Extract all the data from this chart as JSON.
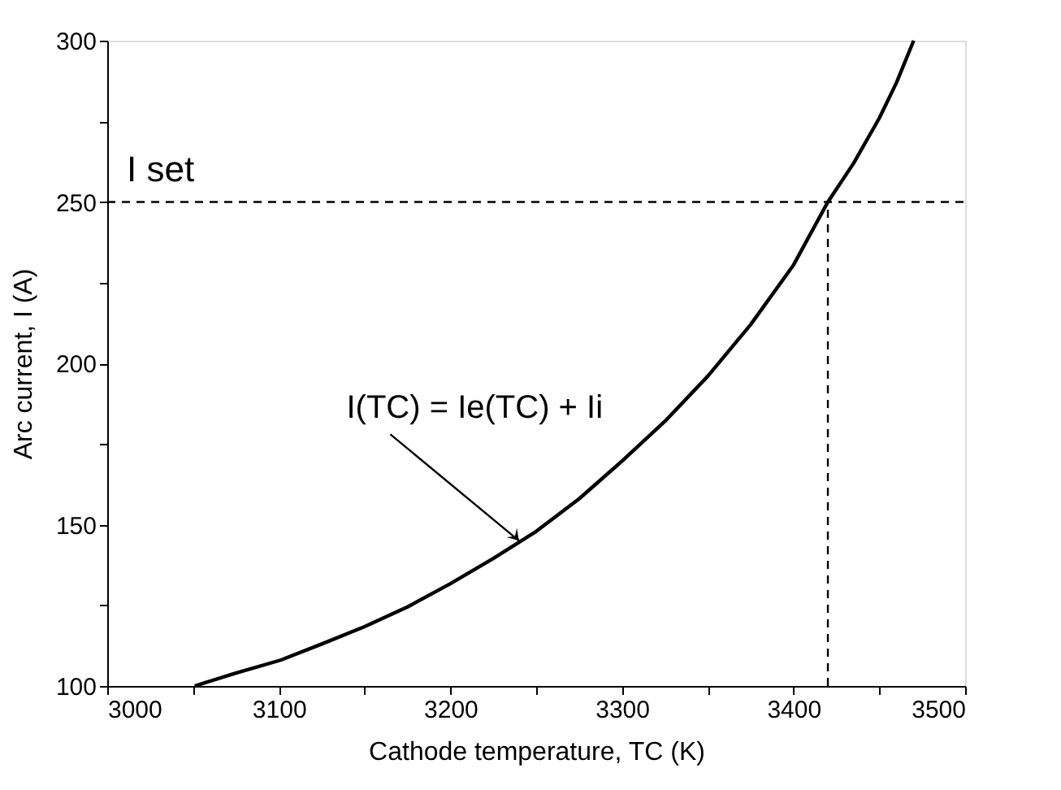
{
  "chart_data": {
    "type": "line",
    "xlabel": "Cathode temperature, TC (K)",
    "ylabel": "Arc current, I (A)",
    "x": [
      3051,
      3075,
      3101,
      3125,
      3150,
      3175,
      3200,
      3225,
      3250,
      3275,
      3300,
      3325,
      3350,
      3375,
      3400,
      3420,
      3435,
      3450,
      3460,
      3470
    ],
    "series": [
      {
        "color": "#000000",
        "values": [
          100,
          104,
          108,
          113,
          118.4,
          124.5,
          131.7,
          139.5,
          147.9,
          158,
          169.7,
          182,
          196,
          212,
          230.5,
          250,
          262,
          276,
          287,
          300
        ]
      }
    ],
    "xlim": [
      3000,
      3500
    ],
    "ylim": [
      100,
      300
    ],
    "xticks": [
      3000,
      {
        "value": 3050,
        "label": null
      },
      3100,
      {
        "value": 3150,
        "label": null
      },
      3200,
      {
        "value": 3250,
        "label": null
      },
      3300,
      {
        "value": 3350,
        "label": null
      },
      3400,
      {
        "value": 3450,
        "label": null
      },
      3500
    ],
    "yticks": [
      100,
      {
        "value": 125,
        "label": null
      },
      150,
      {
        "value": 175,
        "label": null
      },
      200,
      {
        "value": 225,
        "label": null
      },
      250,
      {
        "value": 275,
        "label": null
      },
      300
    ],
    "ref_lines": [
      {
        "axis": "y",
        "value": 250,
        "label": "I set",
        "line_style": "dashed",
        "color": "#000000"
      },
      {
        "axis": "x",
        "value": 3420,
        "line_style": "dashed",
        "color": "#000000"
      }
    ],
    "annotations": [
      {
        "text": "I(TC) = Ie(TC) + Ii",
        "x": 3240,
        "y": 145
      }
    ],
    "grid": false,
    "marker": "none",
    "line_style": "solid"
  }
}
